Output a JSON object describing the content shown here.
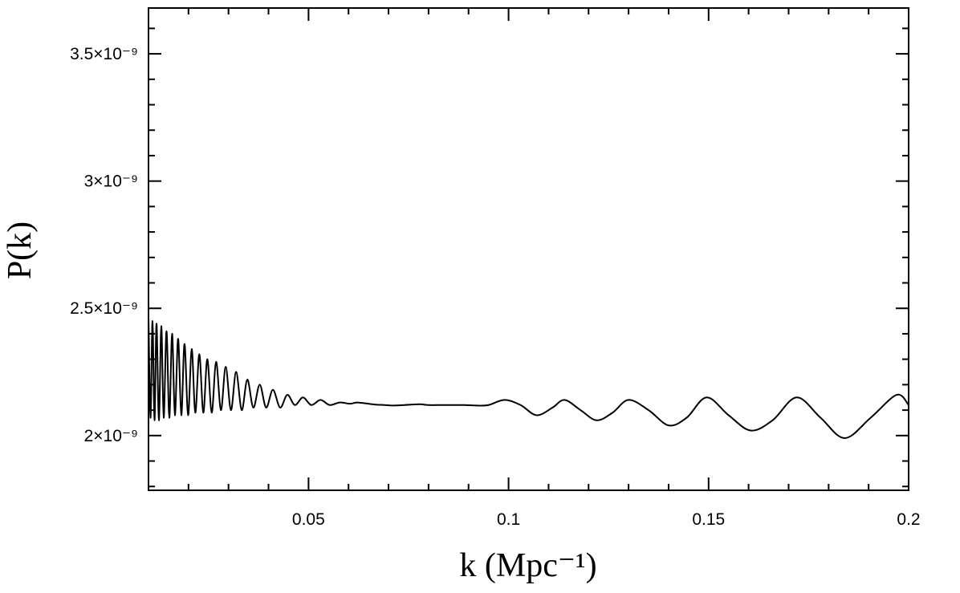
{
  "chart_data": {
    "type": "line",
    "title": "",
    "xlabel": "k (Mpc⁻¹)",
    "ylabel": "P(k)",
    "xlim": [
      0.01,
      0.2
    ],
    "ylim": [
      1.785e-09,
      3.68e-09
    ],
    "grid": false,
    "legend": "none",
    "line_color": "#000000",
    "x_ticks": [
      {
        "value": 0.05,
        "label": "0.05"
      },
      {
        "value": 0.1,
        "label": "0.1"
      },
      {
        "value": 0.15,
        "label": "0.15"
      },
      {
        "value": 0.2,
        "label": "0.2"
      }
    ],
    "y_ticks": [
      {
        "value": 2e-09,
        "label": "2×10⁻⁹"
      },
      {
        "value": 2.5e-09,
        "label": "2.5×10⁻⁹"
      },
      {
        "value": 3e-09,
        "label": "3×10⁻⁹"
      },
      {
        "value": 3.5e-09,
        "label": "3.5×10⁻⁹"
      }
    ],
    "x_minor_step": 0.01,
    "y_minor_step": 1e-10,
    "series": [
      {
        "x": [
          0.01,
          0.0105,
          0.011,
          0.0115,
          0.012,
          0.0126,
          0.0132,
          0.0138,
          0.0145,
          0.0152,
          0.0159,
          0.0166,
          0.0174,
          0.0182,
          0.019,
          0.0199,
          0.0208,
          0.0217,
          0.0227,
          0.0237,
          0.0247,
          0.0258,
          0.0269,
          0.0281,
          0.0293,
          0.0306,
          0.0319,
          0.0333,
          0.0347,
          0.0362,
          0.0378,
          0.0394,
          0.0411,
          0.0429,
          0.0447,
          0.0466,
          0.0486,
          0.0507,
          0.053,
          0.0553,
          0.0578,
          0.0604,
          0.062,
          0.064,
          0.0665,
          0.069,
          0.071,
          0.074,
          0.076,
          0.078,
          0.08,
          0.083,
          0.086,
          0.089,
          0.092,
          0.095,
          0.099,
          0.103,
          0.107,
          0.111,
          0.114,
          0.118,
          0.122,
          0.126,
          0.13,
          0.135,
          0.14,
          0.1445,
          0.1495,
          0.155,
          0.1605,
          0.166,
          0.172,
          0.178,
          0.184,
          0.1905,
          0.197,
          0.2
        ],
        "values": [
          2.47e-09,
          2.07e-09,
          2.45e-09,
          2.06e-09,
          2.44e-09,
          2.06e-09,
          2.43e-09,
          2.07e-09,
          2.41e-09,
          2.07e-09,
          2.4e-09,
          2.08e-09,
          2.38e-09,
          2.08e-09,
          2.36e-09,
          2.08e-09,
          2.34e-09,
          2.09e-09,
          2.32e-09,
          2.09e-09,
          2.3e-09,
          2.09e-09,
          2.29e-09,
          2.1e-09,
          2.27e-09,
          2.1e-09,
          2.25e-09,
          2.1e-09,
          2.22e-09,
          2.11e-09,
          2.2e-09,
          2.11e-09,
          2.18e-09,
          2.11e-09,
          2.16e-09,
          2.12e-09,
          2.15e-09,
          2.12e-09,
          2.14e-09,
          2.12e-09,
          2.13e-09,
          2.125e-09,
          2.13e-09,
          2.127e-09,
          2.122e-09,
          2.12e-09,
          2.118e-09,
          2.12e-09,
          2.122e-09,
          2.123e-09,
          2.12e-09,
          2.12e-09,
          2.12e-09,
          2.12e-09,
          2.118e-09,
          2.12e-09,
          2.14e-09,
          2.12e-09,
          2.08e-09,
          2.11e-09,
          2.14e-09,
          2.1e-09,
          2.06e-09,
          2.09e-09,
          2.14e-09,
          2.1e-09,
          2.04e-09,
          2.07e-09,
          2.15e-09,
          2.08e-09,
          2.02e-09,
          2.06e-09,
          2.15e-09,
          2.07e-09,
          1.99e-09,
          2.07e-09,
          2.16e-09,
          2.12e-09
        ]
      }
    ]
  }
}
